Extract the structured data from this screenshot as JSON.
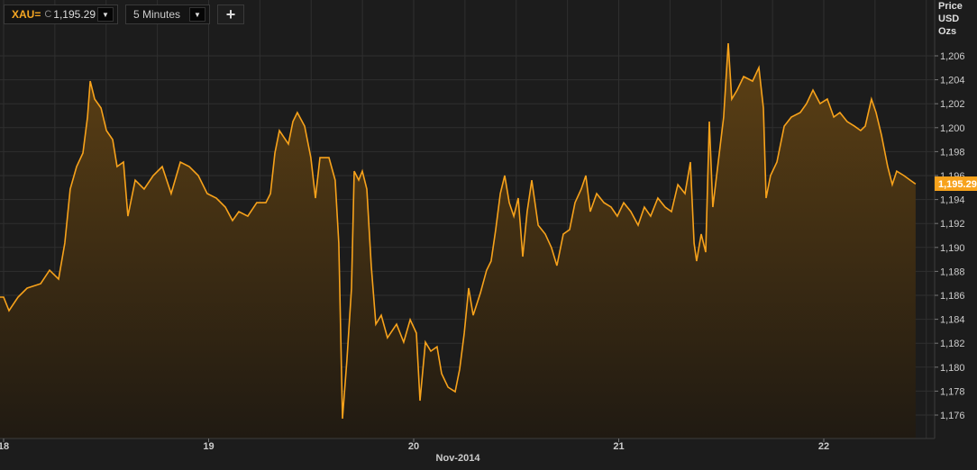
{
  "toolbar": {
    "symbol": "XAU=",
    "close_prefix": "C",
    "last_value": "1,195.29",
    "interval": "5 Minutes",
    "add_label": "+",
    "dropdown_icon": "triangle-down-icon",
    "add_icon": "plus-icon"
  },
  "axis_title": [
    "Price",
    "USD",
    "Ozs"
  ],
  "colors": {
    "line": "#f7a21b",
    "fill_top": "#5e4114",
    "fill_bottom": "#201a12",
    "background": "#1c1c1c",
    "grid": "#2f2f2f",
    "last_badge": "#f7a21b"
  },
  "chart_data": {
    "type": "area",
    "title": "",
    "xlabel": "Nov-2014",
    "ylabel": "Price USD Ozs",
    "ylim": [
      1174.5,
      1208
    ],
    "yticks": [
      1176,
      1178,
      1180,
      1182,
      1184,
      1186,
      1188,
      1190,
      1192,
      1194,
      1196,
      1198,
      1200,
      1202,
      1204,
      1206
    ],
    "ytick_labels": [
      "1,176",
      "1,178",
      "1,180",
      "1,182",
      "1,184",
      "1,186",
      "1,188",
      "1,190",
      "1,192",
      "1,194",
      "1,196",
      "1,198",
      "1,200",
      "1,202",
      "1,204",
      "1,206"
    ],
    "xticks": [
      "2014-11-18 00:00",
      "2014-11-19 00:00",
      "2014-11-20 00:00",
      "2014-11-21 00:00",
      "2014-11-22 00:00"
    ],
    "xtick_labels": [
      "18",
      "19",
      "20",
      "21",
      "22"
    ],
    "grid": true,
    "last_value_label": "1,195.29",
    "series": [
      {
        "points": [
          [
            "2014-11-18 00:00",
            1185.85
          ],
          [
            "2014-11-18 00:38",
            1184.72
          ],
          [
            "2014-11-18 01:41",
            1185.85
          ],
          [
            "2014-11-18 02:45",
            1186.6
          ],
          [
            "2014-11-18 04:20",
            1186.97
          ],
          [
            "2014-11-18 05:23",
            1188.1
          ],
          [
            "2014-11-18 06:26",
            1187.35
          ],
          [
            "2014-11-18 07:10",
            1190.36
          ],
          [
            "2014-11-18 07:48",
            1194.87
          ],
          [
            "2014-11-18 08:33",
            1196.75
          ],
          [
            "2014-11-18 09:17",
            1197.88
          ],
          [
            "2014-11-18 09:49",
            1200.89
          ],
          [
            "2014-11-18 10:08",
            1203.89
          ],
          [
            "2014-11-18 10:39",
            1202.39
          ],
          [
            "2014-11-18 11:24",
            1201.64
          ],
          [
            "2014-11-18 12:02",
            1199.76
          ],
          [
            "2014-11-18 12:46",
            1199.01
          ],
          [
            "2014-11-18 13:17",
            1196.75
          ],
          [
            "2014-11-18 14:02",
            1197.13
          ],
          [
            "2014-11-18 14:33",
            1192.61
          ],
          [
            "2014-11-18 15:24",
            1195.62
          ],
          [
            "2014-11-18 16:27",
            1194.87
          ],
          [
            "2014-11-18 17:31",
            1196.0
          ],
          [
            "2014-11-18 18:34",
            1196.75
          ],
          [
            "2014-11-18 19:37",
            1194.5
          ],
          [
            "2014-11-18 20:41",
            1197.13
          ],
          [
            "2014-11-18 21:44",
            1196.75
          ],
          [
            "2014-11-18 22:47",
            1196.0
          ],
          [
            "2014-11-18 23:50",
            1194.5
          ],
          [
            "2014-11-19 00:54",
            1194.12
          ],
          [
            "2014-11-19 01:57",
            1193.37
          ],
          [
            "2014-11-19 02:48",
            1192.24
          ],
          [
            "2014-11-19 03:32",
            1192.99
          ],
          [
            "2014-11-19 04:35",
            1192.61
          ],
          [
            "2014-11-19 05:38",
            1193.74
          ],
          [
            "2014-11-19 06:42",
            1193.74
          ],
          [
            "2014-11-19 07:14",
            1194.5
          ],
          [
            "2014-11-19 07:45",
            1197.88
          ],
          [
            "2014-11-19 08:17",
            1199.76
          ],
          [
            "2014-11-19 09:20",
            1198.63
          ],
          [
            "2014-11-19 09:52",
            1200.51
          ],
          [
            "2014-11-19 10:23",
            1201.26
          ],
          [
            "2014-11-19 11:14",
            1200.13
          ],
          [
            "2014-11-19 11:58",
            1197.5
          ],
          [
            "2014-11-19 12:30",
            1194.12
          ],
          [
            "2014-11-19 13:02",
            1197.5
          ],
          [
            "2014-11-19 14:05",
            1197.5
          ],
          [
            "2014-11-19 14:49",
            1195.62
          ],
          [
            "2014-11-19 15:14",
            1190.36
          ],
          [
            "2014-11-19 15:40",
            1175.7
          ],
          [
            "2014-11-19 16:11",
            1180.58
          ],
          [
            "2014-11-19 16:43",
            1186.6
          ],
          [
            "2014-11-19 17:02",
            1196.37
          ],
          [
            "2014-11-19 17:34",
            1195.62
          ],
          [
            "2014-11-19 17:59",
            1196.37
          ],
          [
            "2014-11-19 18:31",
            1194.87
          ],
          [
            "2014-11-19 19:02",
            1188.48
          ],
          [
            "2014-11-19 19:34",
            1183.59
          ],
          [
            "2014-11-19 20:12",
            1184.34
          ],
          [
            "2014-11-19 20:56",
            1182.46
          ],
          [
            "2014-11-19 22:00",
            1183.59
          ],
          [
            "2014-11-19 22:50",
            1182.09
          ],
          [
            "2014-11-19 23:35",
            1183.97
          ],
          [
            "2014-11-20 00:19",
            1182.84
          ],
          [
            "2014-11-20 00:44",
            1177.2
          ],
          [
            "2014-11-20 01:22",
            1182.09
          ],
          [
            "2014-11-20 02:00",
            1181.34
          ],
          [
            "2014-11-20 02:44",
            1181.71
          ],
          [
            "2014-11-20 03:16",
            1179.46
          ],
          [
            "2014-11-20 04:01",
            1178.33
          ],
          [
            "2014-11-20 04:51",
            1177.95
          ],
          [
            "2014-11-20 05:23",
            1179.83
          ],
          [
            "2014-11-20 05:55",
            1182.84
          ],
          [
            "2014-11-20 06:26",
            1186.6
          ],
          [
            "2014-11-20 06:58",
            1184.34
          ],
          [
            "2014-11-20 07:49",
            1186.22
          ],
          [
            "2014-11-20 08:32",
            1188.1
          ],
          [
            "2014-11-20 09:04",
            1188.86
          ],
          [
            "2014-11-20 09:36",
            1191.49
          ],
          [
            "2014-11-20 10:08",
            1194.5
          ],
          [
            "2014-11-20 10:39",
            1196.0
          ],
          [
            "2014-11-20 11:11",
            1193.74
          ],
          [
            "2014-11-20 11:43",
            1192.61
          ],
          [
            "2014-11-20 12:14",
            1194.12
          ],
          [
            "2014-11-20 12:46",
            1189.23
          ],
          [
            "2014-11-20 13:17",
            1192.99
          ],
          [
            "2014-11-20 13:49",
            1195.62
          ],
          [
            "2014-11-20 14:34",
            1191.86
          ],
          [
            "2014-11-20 15:24",
            1191.11
          ],
          [
            "2014-11-20 16:08",
            1189.98
          ],
          [
            "2014-11-20 16:46",
            1188.48
          ],
          [
            "2014-11-20 17:31",
            1191.11
          ],
          [
            "2014-11-20 18:15",
            1191.49
          ],
          [
            "2014-11-20 18:53",
            1193.74
          ],
          [
            "2014-11-20 19:37",
            1194.87
          ],
          [
            "2014-11-20 20:09",
            1196.0
          ],
          [
            "2014-11-20 20:40",
            1192.99
          ],
          [
            "2014-11-20 21:25",
            1194.5
          ],
          [
            "2014-11-20 22:16",
            1193.74
          ],
          [
            "2014-11-20 23:06",
            1193.37
          ],
          [
            "2014-11-20 23:50",
            1192.61
          ],
          [
            "2014-11-21 00:35",
            1193.74
          ],
          [
            "2014-11-21 01:25",
            1192.99
          ],
          [
            "2014-11-21 02:16",
            1191.86
          ],
          [
            "2014-11-21 03:00",
            1193.37
          ],
          [
            "2014-11-21 03:44",
            1192.61
          ],
          [
            "2014-11-21 04:35",
            1194.12
          ],
          [
            "2014-11-21 05:26",
            1193.37
          ],
          [
            "2014-11-21 06:10",
            1192.99
          ],
          [
            "2014-11-21 06:55",
            1195.25
          ],
          [
            "2014-11-21 07:45",
            1194.5
          ],
          [
            "2014-11-21 08:23",
            1197.13
          ],
          [
            "2014-11-21 08:49",
            1190.36
          ],
          [
            "2014-11-21 09:07",
            1188.86
          ],
          [
            "2014-11-21 09:39",
            1191.11
          ],
          [
            "2014-11-21 10:11",
            1189.6
          ],
          [
            "2014-11-21 10:36",
            1200.51
          ],
          [
            "2014-11-21 11:01",
            1193.37
          ],
          [
            "2014-11-21 11:39",
            1197.13
          ],
          [
            "2014-11-21 12:17",
            1200.89
          ],
          [
            "2014-11-21 12:49",
            1207.05
          ],
          [
            "2014-11-21 13:14",
            1202.39
          ],
          [
            "2014-11-21 13:52",
            1203.14
          ],
          [
            "2014-11-21 14:37",
            1204.27
          ],
          [
            "2014-11-21 15:40",
            1203.89
          ],
          [
            "2014-11-21 16:24",
            1205.02
          ],
          [
            "2014-11-21 16:56",
            1201.64
          ],
          [
            "2014-11-21 17:15",
            1194.12
          ],
          [
            "2014-11-21 17:46",
            1196.0
          ],
          [
            "2014-11-21 18:31",
            1197.13
          ],
          [
            "2014-11-21 19:22",
            1200.13
          ],
          [
            "2014-11-21 20:12",
            1200.89
          ],
          [
            "2014-11-21 21:15",
            1201.26
          ],
          [
            "2014-11-21 21:59",
            1202.01
          ],
          [
            "2014-11-21 22:44",
            1203.14
          ],
          [
            "2014-11-21 23:34",
            1202.01
          ],
          [
            "2014-11-22 00:25",
            1202.39
          ],
          [
            "2014-11-22 01:10",
            1200.89
          ],
          [
            "2014-11-22 01:53",
            1201.26
          ],
          [
            "2014-11-22 02:44",
            1200.51
          ],
          [
            "2014-11-22 03:35",
            1200.13
          ],
          [
            "2014-11-22 04:19",
            1199.76
          ],
          [
            "2014-11-22 04:51",
            1200.13
          ],
          [
            "2014-11-22 05:35",
            1202.39
          ],
          [
            "2014-11-22 06:07",
            1201.26
          ],
          [
            "2014-11-22 06:45",
            1199.38
          ],
          [
            "2014-11-22 07:29",
            1196.75
          ],
          [
            "2014-11-22 08:01",
            1195.25
          ],
          [
            "2014-11-22 08:32",
            1196.37
          ],
          [
            "2014-11-22 09:23",
            1196.0
          ],
          [
            "2014-11-22 10:07",
            1195.62
          ],
          [
            "2014-11-22 10:45",
            1195.29
          ]
        ]
      }
    ]
  }
}
